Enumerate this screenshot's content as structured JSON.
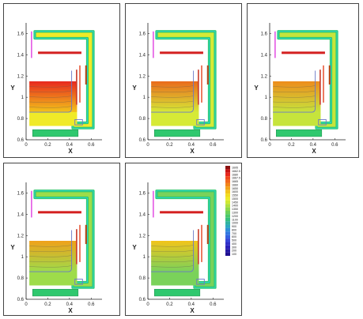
{
  "chart_data": {
    "type": "heatmap",
    "xlabel": "X",
    "ylabel": "Y",
    "xlim": [
      0,
      0.7
    ],
    "ylim": [
      0.6,
      1.7
    ],
    "x_ticks": [
      "0",
      "0.2",
      "0.4",
      "0.6"
    ],
    "y_ticks": [
      "0.6",
      "0.8",
      "1",
      "1.2",
      "1.4",
      "1.6"
    ],
    "panels": [
      {
        "panel": 1,
        "block_top_color": "#e8281e",
        "block_bottom_color": "#f2c41a",
        "fluid_color": "#f0ea28"
      },
      {
        "panel": 2,
        "block_top_color": "#ea6a1c",
        "block_bottom_color": "#d6ea36",
        "fluid_color": "#d6ea36"
      },
      {
        "panel": 3,
        "block_top_color": "#ee8c1c",
        "block_bottom_color": "#c6e43c",
        "fluid_color": "#c6e43c"
      },
      {
        "panel": 4,
        "block_top_color": "#f0a11a",
        "block_bottom_color": "#9edc4a",
        "fluid_color": "#9edc4a"
      },
      {
        "panel": 5,
        "block_top_color": "#f2c41a",
        "block_bottom_color": "#7ad25a",
        "fluid_color": "#7ad25a"
      }
    ],
    "legend": {
      "levels": [
        "1695",
        "1662.5",
        "1680",
        "1667.5",
        "1665",
        "1660",
        "1650",
        "1600",
        "1550",
        "1500",
        "1450",
        "1400",
        "1350",
        "1300",
        "1200",
        "1100",
        "1000",
        "900",
        "800",
        "700",
        "600",
        "500",
        "400",
        "300",
        "200",
        "100"
      ],
      "colors": [
        "#8b1010",
        "#c81414",
        "#e8281e",
        "#f04a1e",
        "#f2681c",
        "#f2861a",
        "#f2a41a",
        "#f2c41a",
        "#f2dc20",
        "#ecec28",
        "#d0e832",
        "#b0e03e",
        "#8cd84c",
        "#6cd05a",
        "#4cc86a",
        "#36c080",
        "#30b4a0",
        "#2ea8c0",
        "#3090d8",
        "#3278e0",
        "#3460e0",
        "#3646d8",
        "#3030c8",
        "#2a20b8",
        "#2418a4",
        "#201090"
      ]
    }
  },
  "colors": {
    "shell": "#2fc86e",
    "heater": "#d42020",
    "magenta_bar": "#e040e0",
    "vertical_bar": "#b04a18",
    "outline": "#6a78c8",
    "cyan_edge": "#2edce8"
  }
}
